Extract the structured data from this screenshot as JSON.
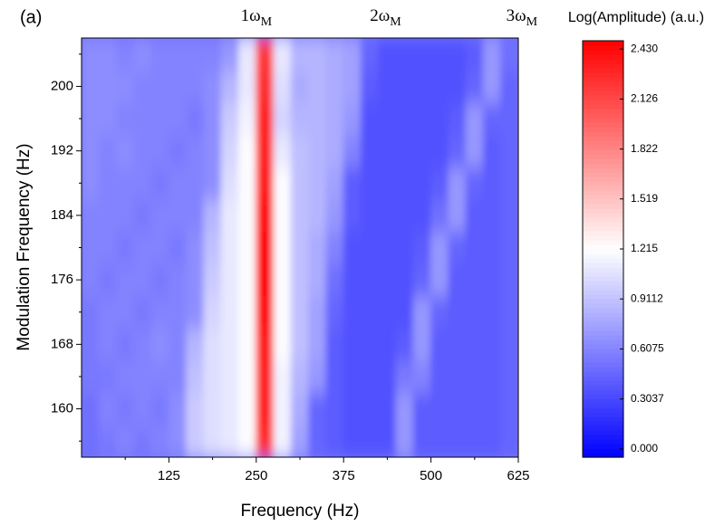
{
  "chart_data": {
    "type": "heatmap",
    "panel_label": "(a)",
    "xlabel": "Frequency (Hz)",
    "ylabel": "Modulation Frequency (Hz)",
    "colorbar_label": "Log(Amplitude) (a.u.)",
    "annotations": [
      {
        "text": "1ω",
        "subscript": "M",
        "x": 250
      },
      {
        "text": "2ω",
        "subscript": "M",
        "x": 435
      },
      {
        "text": "3ω",
        "subscript": "M",
        "x": 630
      }
    ],
    "xlim": [
      0,
      625
    ],
    "ylim": [
      154,
      206
    ],
    "xticks": [
      125,
      250,
      375,
      500,
      625
    ],
    "xminorticks": [
      62.5,
      187.5,
      312.5,
      437.5,
      562.5
    ],
    "yticks": [
      160,
      168,
      176,
      184,
      192,
      200
    ],
    "yminorticks": [
      156,
      164,
      172,
      180,
      188,
      196,
      204
    ],
    "colormap": [
      "#0000ff",
      "#ffffff",
      "#ff0000"
    ],
    "clim": [
      -0.05,
      2.48
    ],
    "cticks": [
      {
        "value": 0,
        "label": "0.000"
      },
      0.3037,
      0.6075,
      0.9112,
      1.215,
      1.519,
      1.822,
      2.126,
      {
        "value": 2.43,
        "label": "2.430"
      }
    ],
    "xbins": [
      0,
      25,
      50,
      75,
      100,
      125,
      150,
      175,
      200,
      225,
      250,
      275,
      300,
      325,
      350,
      375,
      400,
      425,
      450,
      475,
      500,
      525,
      550,
      575,
      600,
      625
    ],
    "ybins": [
      154,
      158,
      162,
      166,
      170,
      174,
      178,
      182,
      186,
      190,
      194,
      198,
      202,
      206
    ],
    "z": [
      [
        0.5,
        0.55,
        0.6,
        0.55,
        0.6,
        0.65,
        0.95,
        1.05,
        1.1,
        1.2,
        2.25,
        1.15,
        0.75,
        0.45,
        0.4,
        0.35,
        0.35,
        0.35,
        0.7,
        0.4,
        0.4,
        0.4,
        0.4,
        0.4,
        0.45
      ],
      [
        0.5,
        0.6,
        0.55,
        0.6,
        0.55,
        0.65,
        0.95,
        1.05,
        1.1,
        1.2,
        2.3,
        1.15,
        0.8,
        0.45,
        0.4,
        0.35,
        0.35,
        0.35,
        0.7,
        0.4,
        0.4,
        0.4,
        0.4,
        0.4,
        0.45
      ],
      [
        0.55,
        0.55,
        0.6,
        0.6,
        0.6,
        0.6,
        0.9,
        1.05,
        1.1,
        1.2,
        2.3,
        1.15,
        0.85,
        0.7,
        0.4,
        0.35,
        0.35,
        0.35,
        0.55,
        0.6,
        0.4,
        0.4,
        0.4,
        0.4,
        0.45
      ],
      [
        0.55,
        0.6,
        0.55,
        0.6,
        0.65,
        0.6,
        0.85,
        1.05,
        1.1,
        1.2,
        2.35,
        1.2,
        0.9,
        0.75,
        0.4,
        0.35,
        0.35,
        0.35,
        0.4,
        0.7,
        0.4,
        0.4,
        0.4,
        0.4,
        0.45
      ],
      [
        0.55,
        0.6,
        0.6,
        0.55,
        0.6,
        0.6,
        0.65,
        1.0,
        1.1,
        1.2,
        2.4,
        1.2,
        0.9,
        0.75,
        0.45,
        0.35,
        0.35,
        0.35,
        0.35,
        0.7,
        0.45,
        0.4,
        0.4,
        0.4,
        0.45
      ],
      [
        0.6,
        0.55,
        0.6,
        0.6,
        0.55,
        0.6,
        0.65,
        0.95,
        1.1,
        1.2,
        2.45,
        1.2,
        0.9,
        0.8,
        0.5,
        0.35,
        0.35,
        0.35,
        0.35,
        0.45,
        0.7,
        0.4,
        0.4,
        0.4,
        0.45
      ],
      [
        0.6,
        0.6,
        0.55,
        0.6,
        0.6,
        0.55,
        0.65,
        0.9,
        1.1,
        1.2,
        2.45,
        1.2,
        0.9,
        0.8,
        0.6,
        0.35,
        0.35,
        0.35,
        0.35,
        0.4,
        0.7,
        0.45,
        0.4,
        0.4,
        0.45
      ],
      [
        0.6,
        0.6,
        0.6,
        0.55,
        0.6,
        0.6,
        0.6,
        0.85,
        1.1,
        1.2,
        2.4,
        1.2,
        0.9,
        0.85,
        0.7,
        0.4,
        0.35,
        0.35,
        0.35,
        0.35,
        0.5,
        0.7,
        0.4,
        0.4,
        0.45
      ],
      [
        0.65,
        0.6,
        0.6,
        0.6,
        0.55,
        0.6,
        0.6,
        0.65,
        1.05,
        1.2,
        2.35,
        1.2,
        0.9,
        0.85,
        0.75,
        0.4,
        0.35,
        0.35,
        0.35,
        0.35,
        0.4,
        0.7,
        0.45,
        0.4,
        0.45
      ],
      [
        0.65,
        0.6,
        0.65,
        0.6,
        0.6,
        0.55,
        0.6,
        0.65,
        1.0,
        1.2,
        2.3,
        1.1,
        0.9,
        0.85,
        0.8,
        0.6,
        0.35,
        0.35,
        0.35,
        0.35,
        0.35,
        0.45,
        0.7,
        0.4,
        0.45
      ],
      [
        0.65,
        0.65,
        0.6,
        0.6,
        0.6,
        0.6,
        0.55,
        0.65,
        0.95,
        1.15,
        2.3,
        1.0,
        0.85,
        0.85,
        0.8,
        0.7,
        0.35,
        0.35,
        0.35,
        0.35,
        0.35,
        0.4,
        0.7,
        0.45,
        0.45
      ],
      [
        0.65,
        0.65,
        0.65,
        0.6,
        0.6,
        0.6,
        0.6,
        0.65,
        0.85,
        1.1,
        2.25,
        1.05,
        0.8,
        0.85,
        0.8,
        0.75,
        0.4,
        0.35,
        0.35,
        0.35,
        0.35,
        0.35,
        0.45,
        0.7,
        0.45
      ],
      [
        0.65,
        0.65,
        0.6,
        0.65,
        0.6,
        0.6,
        0.6,
        0.6,
        0.7,
        1.1,
        2.2,
        1.1,
        0.85,
        0.85,
        0.8,
        0.75,
        0.45,
        0.35,
        0.35,
        0.35,
        0.35,
        0.35,
        0.4,
        0.7,
        0.5
      ]
    ]
  }
}
